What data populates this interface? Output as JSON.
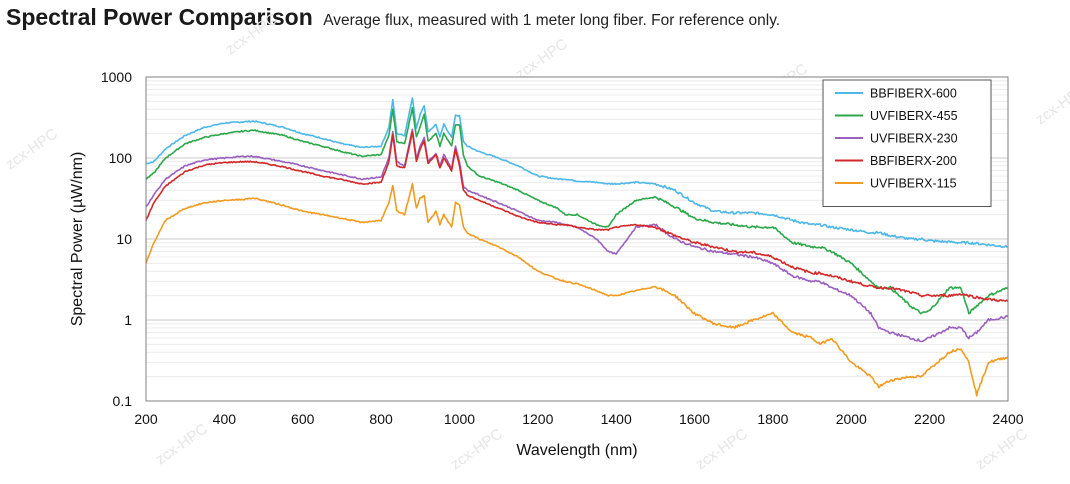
{
  "header": {
    "title": "Spectral Power Comparison",
    "subtitle": "Average flux, measured with 1 meter long fiber. For reference only."
  },
  "chart_data": {
    "type": "line",
    "title": "Spectral Power Comparison",
    "subtitle": "Average flux, measured with 1 meter long fiber. For reference only.",
    "xlabel": "Wavelength (nm)",
    "ylabel": "Spectral Power (µW/nm)",
    "xlim": [
      200,
      2400
    ],
    "ylim": [
      0.1,
      1000
    ],
    "yscale": "log",
    "x_ticks": [
      200,
      400,
      600,
      800,
      1000,
      1200,
      1400,
      1600,
      1800,
      2000,
      2200,
      2400
    ],
    "y_ticks": [
      0.1,
      1,
      10,
      100,
      1000
    ],
    "y_tick_labels": [
      "0.1",
      "1",
      "10",
      "100",
      "1000"
    ],
    "grid": true,
    "legend_position": "top-right",
    "x": [
      200,
      220,
      250,
      300,
      350,
      400,
      450,
      475,
      500,
      550,
      600,
      650,
      700,
      750,
      800,
      820,
      830,
      840,
      860,
      880,
      890,
      900,
      910,
      920,
      940,
      950,
      960,
      980,
      990,
      1000,
      1010,
      1020,
      1050,
      1100,
      1150,
      1200,
      1250,
      1270,
      1300,
      1350,
      1380,
      1400,
      1450,
      1500,
      1550,
      1600,
      1650,
      1700,
      1750,
      1800,
      1850,
      1900,
      1920,
      1950,
      2000,
      2050,
      2070,
      2100,
      2150,
      2180,
      2200,
      2250,
      2280,
      2300,
      2320,
      2350,
      2400
    ],
    "series": [
      {
        "name": "BBFIBERX-600",
        "color": "#4db8e8",
        "values": [
          85,
          90,
          130,
          190,
          240,
          270,
          280,
          285,
          270,
          240,
          200,
          175,
          150,
          135,
          140,
          240,
          520,
          200,
          190,
          560,
          230,
          350,
          450,
          210,
          260,
          180,
          260,
          180,
          340,
          330,
          160,
          140,
          120,
          100,
          80,
          60,
          55,
          55,
          52,
          50,
          48,
          48,
          50,
          48,
          40,
          28,
          22,
          21,
          21,
          20,
          17,
          15,
          15,
          14,
          13,
          12,
          12,
          11,
          10,
          10,
          9.5,
          9.2,
          9,
          9,
          8.8,
          8.5,
          8
        ]
      },
      {
        "name": "UVFIBERX-455",
        "color": "#2ba84a",
        "values": [
          55,
          65,
          100,
          150,
          180,
          200,
          215,
          220,
          210,
          190,
          160,
          140,
          120,
          105,
          110,
          190,
          400,
          160,
          150,
          420,
          180,
          250,
          350,
          160,
          200,
          140,
          200,
          140,
          260,
          260,
          110,
          80,
          60,
          50,
          40,
          30,
          24,
          20,
          20,
          15,
          14,
          20,
          30,
          33,
          25,
          18,
          16,
          15,
          14,
          14,
          9,
          8,
          8,
          7,
          5,
          3,
          2.5,
          2.5,
          1.5,
          1.2,
          1.3,
          2.5,
          2.5,
          1.2,
          1.5,
          2,
          2.5
        ]
      },
      {
        "name": "UVFIBERX-230",
        "color": "#9b5fc0",
        "values": [
          25,
          35,
          55,
          80,
          95,
          100,
          105,
          105,
          100,
          90,
          80,
          70,
          62,
          55,
          58,
          100,
          210,
          90,
          80,
          230,
          100,
          140,
          180,
          90,
          115,
          80,
          110,
          75,
          140,
          90,
          45,
          40,
          35,
          28,
          22,
          17,
          16,
          15,
          14,
          10,
          7,
          6.5,
          14,
          15,
          10,
          8,
          7,
          6.5,
          6,
          5,
          3.5,
          3,
          3,
          2.5,
          2,
          1.2,
          0.8,
          0.7,
          0.6,
          0.55,
          0.6,
          0.8,
          0.8,
          0.6,
          0.7,
          1,
          1.1
        ]
      },
      {
        "name": "BBFIBERX-200",
        "color": "#d42828",
        "values": [
          17,
          28,
          45,
          68,
          82,
          88,
          90,
          90,
          86,
          78,
          68,
          60,
          54,
          48,
          50,
          90,
          190,
          80,
          75,
          210,
          90,
          130,
          165,
          85,
          110,
          75,
          100,
          70,
          130,
          80,
          40,
          35,
          30,
          24,
          19,
          16,
          15,
          15,
          14,
          13,
          13,
          14,
          15,
          14,
          11,
          9,
          8,
          7,
          6.8,
          6,
          4.5,
          3.8,
          3.8,
          3.5,
          3,
          2.6,
          2.5,
          2.5,
          2.2,
          2,
          2,
          2,
          2.1,
          2,
          1.9,
          1.8,
          1.7
        ]
      },
      {
        "name": "UVFIBERX-115",
        "color": "#f29b1f",
        "values": [
          5,
          9,
          17,
          24,
          28,
          30,
          31,
          32,
          30,
          26,
          22,
          20,
          18,
          16,
          17,
          28,
          45,
          22,
          20,
          48,
          24,
          32,
          34,
          16,
          22,
          15,
          20,
          14,
          28,
          26,
          14,
          12,
          10,
          8,
          6,
          4,
          3.2,
          3,
          2.8,
          2.3,
          2,
          2,
          2.3,
          2.6,
          2,
          1.2,
          0.9,
          0.8,
          1,
          1.2,
          0.7,
          0.6,
          0.5,
          0.6,
          0.3,
          0.2,
          0.15,
          0.18,
          0.2,
          0.2,
          0.25,
          0.4,
          0.45,
          0.3,
          0.12,
          0.3,
          0.35
        ]
      }
    ]
  },
  "watermark": "zcx-HPC"
}
